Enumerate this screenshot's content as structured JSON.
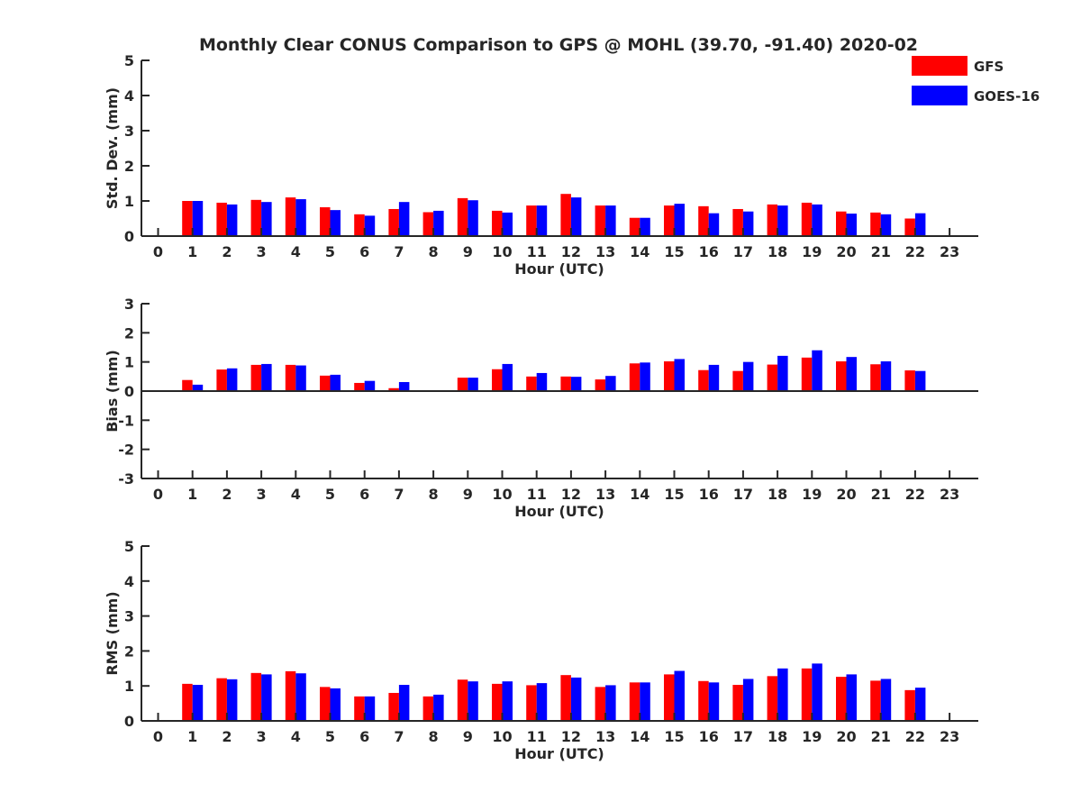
{
  "title": "Monthly Clear CONUS Comparison to GPS @ MOHL (39.70, -91.40) 2020-02",
  "legend": {
    "placement": "top-right",
    "entries": [
      {
        "name": "GFS",
        "color": "#ff0000"
      },
      {
        "name": "GOES-16",
        "color": "#0000ff"
      }
    ]
  },
  "chart_data": [
    {
      "type": "bar",
      "xlabel": "Hour (UTC)",
      "ylabel": "Std. Dev. (mm)",
      "ylim": [
        0,
        5
      ],
      "yticks": [
        0,
        1,
        2,
        3,
        4,
        5
      ],
      "categories": [
        "0",
        "1",
        "2",
        "3",
        "4",
        "5",
        "6",
        "7",
        "8",
        "9",
        "10",
        "11",
        "12",
        "13",
        "14",
        "15",
        "16",
        "17",
        "18",
        "19",
        "20",
        "21",
        "22",
        "23"
      ],
      "series": [
        {
          "name": "GFS",
          "color": "#ff0000",
          "values": [
            null,
            1.0,
            0.95,
            1.03,
            1.1,
            0.82,
            0.62,
            0.77,
            0.68,
            1.08,
            0.72,
            0.87,
            1.2,
            0.87,
            0.52,
            0.87,
            0.85,
            0.77,
            0.9,
            0.95,
            0.7,
            0.67,
            0.5,
            null
          ]
        },
        {
          "name": "GOES-16",
          "color": "#0000ff",
          "values": [
            null,
            1.0,
            0.9,
            0.97,
            1.05,
            0.74,
            0.58,
            0.97,
            0.72,
            1.02,
            0.67,
            0.87,
            1.1,
            0.87,
            0.52,
            0.92,
            0.65,
            0.7,
            0.87,
            0.9,
            0.64,
            0.62,
            0.65,
            null
          ]
        }
      ]
    },
    {
      "type": "bar",
      "xlabel": "Hour (UTC)",
      "ylabel": "Bias (mm)",
      "ylim": [
        -3,
        3
      ],
      "yticks": [
        -3,
        -2,
        -1,
        0,
        1,
        2,
        3
      ],
      "categories": [
        "0",
        "1",
        "2",
        "3",
        "4",
        "5",
        "6",
        "7",
        "8",
        "9",
        "10",
        "11",
        "12",
        "13",
        "14",
        "15",
        "16",
        "17",
        "18",
        "19",
        "20",
        "21",
        "22",
        "23"
      ],
      "series": [
        {
          "name": "GFS",
          "color": "#ff0000",
          "values": [
            null,
            0.38,
            0.74,
            0.9,
            0.9,
            0.53,
            0.28,
            0.1,
            -0.03,
            0.46,
            0.75,
            0.5,
            0.5,
            0.4,
            0.95,
            1.02,
            0.72,
            0.69,
            0.91,
            1.15,
            1.02,
            0.92,
            0.71,
            null
          ]
        },
        {
          "name": "GOES-16",
          "color": "#0000ff",
          "values": [
            null,
            0.22,
            0.78,
            0.93,
            0.88,
            0.56,
            0.35,
            0.31,
            -0.03,
            0.46,
            0.93,
            0.62,
            0.49,
            0.52,
            0.98,
            1.1,
            0.9,
            1.0,
            1.21,
            1.4,
            1.17,
            1.02,
            0.69,
            null
          ]
        }
      ]
    },
    {
      "type": "bar",
      "xlabel": "Hour (UTC)",
      "ylabel": "RMS (mm)",
      "ylim": [
        0,
        5
      ],
      "yticks": [
        0,
        1,
        2,
        3,
        4,
        5
      ],
      "categories": [
        "0",
        "1",
        "2",
        "3",
        "4",
        "5",
        "6",
        "7",
        "8",
        "9",
        "10",
        "11",
        "12",
        "13",
        "14",
        "15",
        "16",
        "17",
        "18",
        "19",
        "20",
        "21",
        "22",
        "23"
      ],
      "series": [
        {
          "name": "GFS",
          "color": "#ff0000",
          "values": [
            null,
            1.06,
            1.22,
            1.37,
            1.42,
            0.97,
            0.7,
            0.8,
            0.7,
            1.18,
            1.06,
            1.02,
            1.31,
            0.97,
            1.1,
            1.33,
            1.14,
            1.03,
            1.28,
            1.5,
            1.26,
            1.15,
            0.88,
            null
          ]
        },
        {
          "name": "GOES-16",
          "color": "#0000ff",
          "values": [
            null,
            1.03,
            1.19,
            1.33,
            1.36,
            0.93,
            0.7,
            1.03,
            0.75,
            1.13,
            1.13,
            1.08,
            1.24,
            1.02,
            1.1,
            1.43,
            1.1,
            1.2,
            1.5,
            1.64,
            1.33,
            1.2,
            0.95,
            null
          ]
        }
      ]
    }
  ]
}
